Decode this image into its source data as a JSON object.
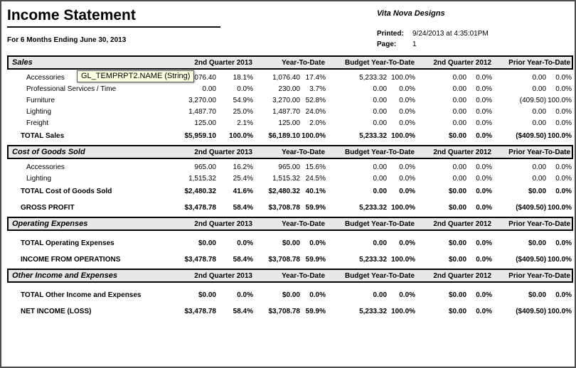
{
  "header": {
    "title": "Income Statement",
    "subtitle": "For 6 Months Ending June 30, 2013",
    "company": "Vita Nova Designs",
    "printed_label": "Printed:",
    "printed_value": "9/24/2013 at 4:35:01PM",
    "page_label": "Page:",
    "page_value": "1"
  },
  "tooltip": {
    "text": "GL_TEMPRPT2.NAME (String)",
    "bg_color": "#ffffe1"
  },
  "colors": {
    "band_bg": "#e8e8e8",
    "border": "#000000",
    "window_border": "#4d4d4d"
  },
  "columns": [
    "2nd Quarter 2013",
    "Year-To-Date",
    "Budget Year-To-Date",
    "2nd Quarter 2012",
    "Prior Year-To-Date"
  ],
  "sections": [
    {
      "title": "Sales",
      "rows": [
        {
          "label": "Accessories",
          "style": "detail",
          "u": "none",
          "gap": 1,
          "cells": [
            [
              "1,076.40",
              "18.1%"
            ],
            [
              "1,076.40",
              "17.4%"
            ],
            [
              "5,233.32",
              "100.0%"
            ],
            [
              "0.00",
              "0.0%"
            ],
            [
              "0.00",
              "0.0%"
            ]
          ]
        },
        {
          "label": "Professional Services / Time",
          "style": "detail",
          "u": "none",
          "gap": 0,
          "cells": [
            [
              "0.00",
              "0.0%"
            ],
            [
              "230.00",
              "3.7%"
            ],
            [
              "0.00",
              "0.0%"
            ],
            [
              "0.00",
              "0.0%"
            ],
            [
              "0.00",
              "0.0%"
            ]
          ]
        },
        {
          "label": "Furniture",
          "style": "detail",
          "u": "none",
          "gap": 0,
          "cells": [
            [
              "3,270.00",
              "54.9%"
            ],
            [
              "3,270.00",
              "52.8%"
            ],
            [
              "0.00",
              "0.0%"
            ],
            [
              "0.00",
              "0.0%"
            ],
            [
              "(409.50)",
              "100.0%"
            ]
          ]
        },
        {
          "label": "Lighting",
          "style": "detail",
          "u": "none",
          "gap": 0,
          "cells": [
            [
              "1,487.70",
              "25.0%"
            ],
            [
              "1,487.70",
              "24.0%"
            ],
            [
              "0.00",
              "0.0%"
            ],
            [
              "0.00",
              "0.0%"
            ],
            [
              "0.00",
              "0.0%"
            ]
          ]
        },
        {
          "label": "Freight",
          "style": "detail",
          "u": "single",
          "gap": 0,
          "cells": [
            [
              "125.00",
              "2.1%"
            ],
            [
              "125.00",
              "2.0%"
            ],
            [
              "0.00",
              "0.0%"
            ],
            [
              "0.00",
              "0.0%"
            ],
            [
              "0.00",
              "0.0%"
            ]
          ]
        },
        {
          "label": "TOTAL Sales",
          "style": "total",
          "u": "single",
          "gap": 1,
          "cells": [
            [
              "$5,959.10",
              "100.0%"
            ],
            [
              "$6,189.10",
              "100.0%"
            ],
            [
              "5,233.32",
              "100.0%"
            ],
            [
              "$0.00",
              "0.0%"
            ],
            [
              "($409.50)",
              "100.0%"
            ]
          ]
        }
      ]
    },
    {
      "title": "Cost of Goods Sold",
      "rows": [
        {
          "label": "Accessories",
          "style": "detail",
          "u": "none",
          "gap": 1,
          "cells": [
            [
              "965.00",
              "16.2%"
            ],
            [
              "965.00",
              "15.6%"
            ],
            [
              "0.00",
              "0.0%"
            ],
            [
              "0.00",
              "0.0%"
            ],
            [
              "0.00",
              "0.0%"
            ]
          ]
        },
        {
          "label": "Lighting",
          "style": "detail",
          "u": "single",
          "gap": 0,
          "cells": [
            [
              "1,515.32",
              "25.4%"
            ],
            [
              "1,515.32",
              "24.5%"
            ],
            [
              "0.00",
              "0.0%"
            ],
            [
              "0.00",
              "0.0%"
            ],
            [
              "0.00",
              "0.0%"
            ]
          ]
        },
        {
          "label": "TOTAL Cost of Goods Sold",
          "style": "total",
          "u": "single",
          "gap": 1,
          "cells": [
            [
              "$2,480.32",
              "41.6%"
            ],
            [
              "$2,480.32",
              "40.1%"
            ],
            [
              "0.00",
              "0.0%"
            ],
            [
              "$0.00",
              "0.0%"
            ],
            [
              "$0.00",
              "0.0%"
            ]
          ]
        },
        {
          "label": "GROSS PROFIT",
          "style": "total",
          "u": "single",
          "gap": 2,
          "cells": [
            [
              "$3,478.78",
              "58.4%"
            ],
            [
              "$3,708.78",
              "59.9%"
            ],
            [
              "5,233.32",
              "100.0%"
            ],
            [
              "$0.00",
              "0.0%"
            ],
            [
              "($409.50)",
              "100.0%"
            ]
          ]
        }
      ]
    },
    {
      "title": "Operating Expenses",
      "rows": [
        {
          "label": "TOTAL Operating Expenses",
          "style": "total",
          "u": "single",
          "gap": 2,
          "cells": [
            [
              "$0.00",
              "0.0%"
            ],
            [
              "$0.00",
              "0.0%"
            ],
            [
              "0.00",
              "0.0%"
            ],
            [
              "$0.00",
              "0.0%"
            ],
            [
              "$0.00",
              "0.0%"
            ]
          ]
        },
        {
          "label": "INCOME FROM OPERATIONS",
          "style": "total",
          "u": "single",
          "gap": 2,
          "cells": [
            [
              "$3,478.78",
              "58.4%"
            ],
            [
              "$3,708.78",
              "59.9%"
            ],
            [
              "5,233.32",
              "100.0%"
            ],
            [
              "$0.00",
              "0.0%"
            ],
            [
              "($409.50)",
              "100.0%"
            ]
          ]
        }
      ]
    },
    {
      "title": "Other Income and Expenses",
      "rows": [
        {
          "label": "TOTAL Other Income and Expenses",
          "style": "total",
          "u": "single",
          "gap": 2,
          "cells": [
            [
              "$0.00",
              "0.0%"
            ],
            [
              "$0.00",
              "0.0%"
            ],
            [
              "0.00",
              "0.0%"
            ],
            [
              "$0.00",
              "0.0%"
            ],
            [
              "$0.00",
              "0.0%"
            ]
          ]
        },
        {
          "label": "NET INCOME (LOSS)",
          "style": "total",
          "u": "double",
          "gap": 2,
          "cells": [
            [
              "$3,478.78",
              "58.4%"
            ],
            [
              "$3,708.78",
              "59.9%"
            ],
            [
              "5,233.32",
              "100.0%"
            ],
            [
              "$0.00",
              "0.0%"
            ],
            [
              "($409.50)",
              "100.0%"
            ]
          ]
        }
      ]
    }
  ]
}
